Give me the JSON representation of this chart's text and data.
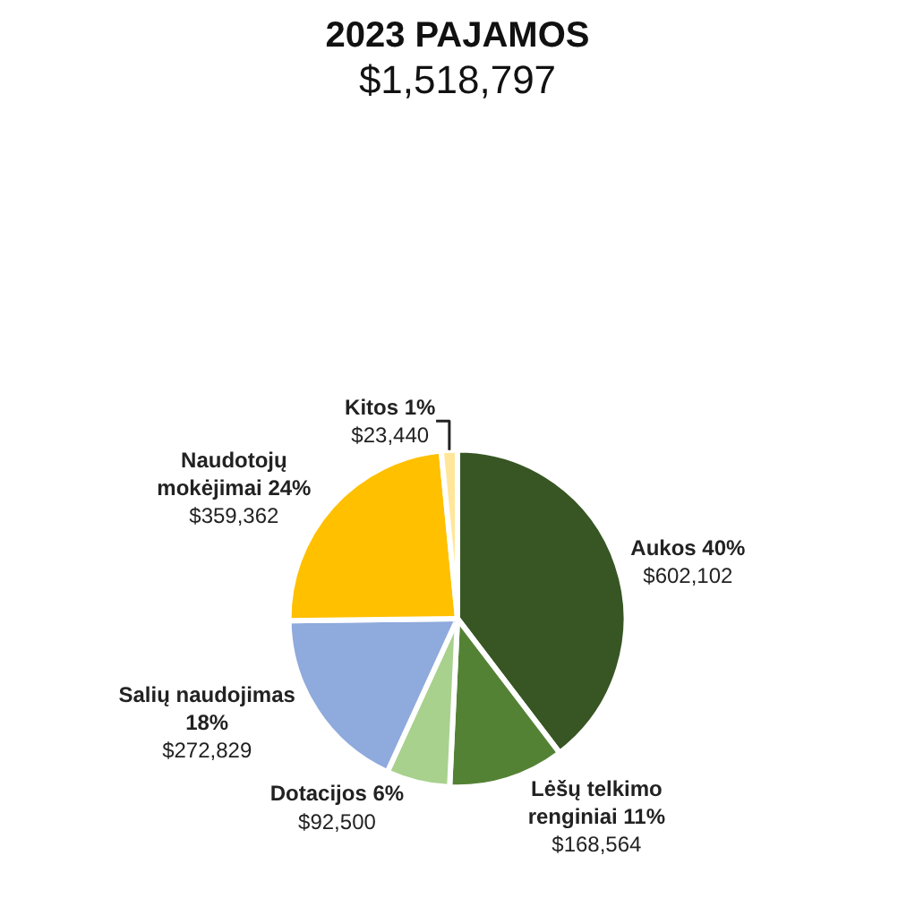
{
  "chart_data": {
    "type": "pie",
    "title": "2023 PAJAMOS",
    "subtitle": "$1,518,797",
    "categories": [
      "Aukos 40%",
      "Lėšų telkimo renginiai 11%",
      "Dotacijos 6%",
      "Salių naudojimas 18%",
      "Naudotojų mokėjimai 24%",
      "Kitos 1%"
    ],
    "values": [
      602102,
      168564,
      92500,
      272829,
      359362,
      23440
    ],
    "value_labels": [
      "$602,102",
      "$168,564",
      "$92,500",
      "$272,829",
      "$359,362",
      "$23,440"
    ],
    "colors": [
      "#375623",
      "#548235",
      "#a9d18e",
      "#8faadc",
      "#ffc000",
      "#ffe699"
    ],
    "legend": false
  }
}
